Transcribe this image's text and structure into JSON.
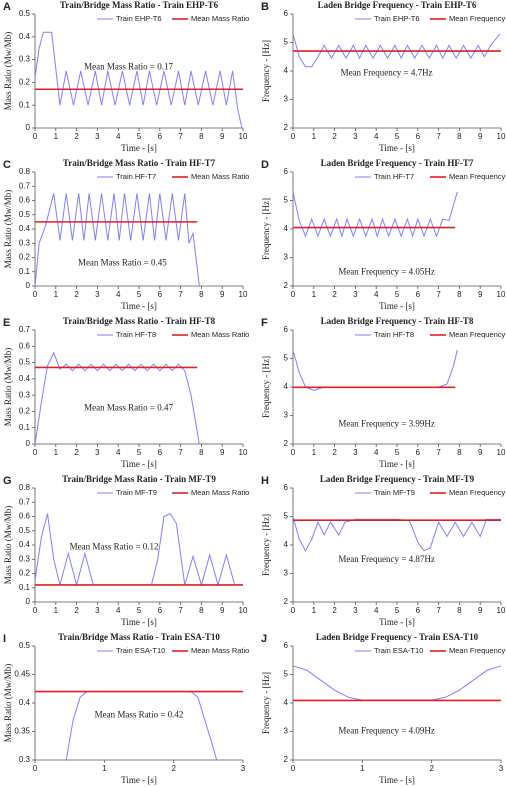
{
  "chart_data": [
    {
      "type": "line",
      "panel": "A",
      "title": "Train/Bridge Mass Ratio - Train EHP-T6",
      "xlabel": "Time - [s]",
      "ylabel": "Mass Ratio (Mw/Mb)",
      "annotation": "Mean Mass Ratio = 0.17",
      "xlim": [
        0,
        10
      ],
      "ylim": [
        0,
        0.5
      ],
      "xticks": [
        0,
        1,
        2,
        3,
        4,
        5,
        6,
        7,
        8,
        9,
        10
      ],
      "yticks": [
        0,
        0.1,
        0.2,
        0.3,
        0.4,
        0.5
      ],
      "series": [
        {
          "name": "Train EHP-T6",
          "color": "#8080ff",
          "x": [
            0,
            0.2,
            0.4,
            0.8,
            1.2,
            1.5,
            1.85,
            2.2,
            2.55,
            2.9,
            3.2,
            3.5,
            3.85,
            4.2,
            4.55,
            4.9,
            5.2,
            5.5,
            5.85,
            6.2,
            6.55,
            6.9,
            7.2,
            7.5,
            7.85,
            8.2,
            8.55,
            8.9,
            9.2,
            9.5,
            9.75,
            9.95
          ],
          "values": [
            0.22,
            0.35,
            0.42,
            0.42,
            0.1,
            0.25,
            0.1,
            0.25,
            0.1,
            0.25,
            0.1,
            0.25,
            0.1,
            0.25,
            0.1,
            0.25,
            0.1,
            0.25,
            0.1,
            0.25,
            0.1,
            0.25,
            0.1,
            0.25,
            0.1,
            0.25,
            0.1,
            0.25,
            0.1,
            0.25,
            0.08,
            0.0
          ]
        },
        {
          "name": "Mean Mass Ratio",
          "color": "#e02020",
          "x": [
            0,
            10
          ],
          "values": [
            0.17,
            0.17
          ]
        }
      ]
    },
    {
      "type": "line",
      "panel": "B",
      "title": "Laden Bridge Frequency - Train EHP-T6",
      "xlabel": "Time - [s]",
      "ylabel": "Frequency - [Hz]",
      "annotation": "Mean Frequency = 4.7Hz",
      "xlim": [
        0,
        10
      ],
      "ylim": [
        2,
        6
      ],
      "xticks": [
        0,
        1,
        2,
        3,
        4,
        5,
        6,
        7,
        8,
        9,
        10
      ],
      "yticks": [
        2,
        3,
        4,
        5,
        6
      ],
      "series": [
        {
          "name": "Train EHP-T6",
          "color": "#8080ff",
          "x": [
            0,
            0.3,
            0.6,
            0.9,
            1.2,
            1.5,
            1.85,
            2.2,
            2.55,
            2.9,
            3.2,
            3.5,
            3.85,
            4.2,
            4.55,
            4.9,
            5.2,
            5.5,
            5.85,
            6.2,
            6.55,
            6.9,
            7.2,
            7.5,
            7.85,
            8.2,
            8.55,
            8.9,
            9.2,
            9.5,
            9.95
          ],
          "values": [
            5.3,
            4.5,
            4.15,
            4.15,
            4.5,
            4.9,
            4.45,
            4.9,
            4.45,
            4.9,
            4.45,
            4.9,
            4.45,
            4.9,
            4.45,
            4.9,
            4.45,
            4.9,
            4.45,
            4.9,
            4.45,
            4.9,
            4.45,
            4.9,
            4.45,
            4.9,
            4.45,
            4.9,
            4.5,
            4.9,
            5.3
          ]
        },
        {
          "name": "Mean Frequency",
          "color": "#e02020",
          "x": [
            0,
            10
          ],
          "values": [
            4.7,
            4.7
          ]
        }
      ]
    },
    {
      "type": "line",
      "panel": "C",
      "title": "Train/Bridge Mass Ratio - Train HF-T7",
      "xlabel": "Time - [s]",
      "ylabel": "Mass Ratio (Mw/Mb)",
      "annotation": "Mean Mass Ratio = 0.45",
      "xlim": [
        0,
        10
      ],
      "ylim": [
        0,
        0.8
      ],
      "xticks": [
        0,
        1,
        2,
        3,
        4,
        5,
        6,
        7,
        8,
        9,
        10
      ],
      "yticks": [
        0,
        0.1,
        0.2,
        0.3,
        0.4,
        0.5,
        0.6,
        0.7,
        0.8
      ],
      "series": [
        {
          "name": "Train HF-T7",
          "color": "#8080ff",
          "x": [
            0,
            0.2,
            0.5,
            0.9,
            1.2,
            1.5,
            1.8,
            2.1,
            2.35,
            2.6,
            2.9,
            3.2,
            3.5,
            3.8,
            4.05,
            4.3,
            4.6,
            4.9,
            5.2,
            5.5,
            5.75,
            6.0,
            6.3,
            6.6,
            6.9,
            7.2,
            7.4,
            7.6,
            7.9
          ],
          "values": [
            0,
            0.3,
            0.42,
            0.65,
            0.32,
            0.65,
            0.32,
            0.65,
            0.32,
            0.65,
            0.32,
            0.65,
            0.32,
            0.65,
            0.32,
            0.65,
            0.32,
            0.65,
            0.32,
            0.65,
            0.32,
            0.65,
            0.32,
            0.65,
            0.32,
            0.65,
            0.3,
            0.37,
            0
          ]
        },
        {
          "name": "Mean Mass Ratio",
          "color": "#e02020",
          "x": [
            0,
            7.8
          ],
          "values": [
            0.45,
            0.45
          ]
        }
      ]
    },
    {
      "type": "line",
      "panel": "D",
      "title": "Laden Bridge Frequency - Train HF-T7",
      "xlabel": "Time - [s]",
      "ylabel": "Frequency - [Hz]",
      "annotation": "Mean Frequency = 4.05Hz",
      "xlim": [
        0,
        10
      ],
      "ylim": [
        2,
        6
      ],
      "xticks": [
        0,
        1,
        2,
        3,
        4,
        5,
        6,
        7,
        8,
        9,
        10
      ],
      "yticks": [
        2,
        3,
        4,
        5,
        6
      ],
      "series": [
        {
          "name": "Train HF-T7",
          "color": "#8080ff",
          "x": [
            0,
            0.3,
            0.6,
            0.9,
            1.2,
            1.5,
            1.8,
            2.1,
            2.35,
            2.6,
            2.9,
            3.2,
            3.5,
            3.8,
            4.05,
            4.3,
            4.6,
            4.9,
            5.2,
            5.5,
            5.75,
            6.0,
            6.3,
            6.6,
            6.9,
            7.2,
            7.5,
            7.9
          ],
          "values": [
            5.3,
            4.3,
            3.75,
            4.35,
            3.75,
            4.35,
            3.75,
            4.35,
            3.75,
            4.35,
            3.75,
            4.35,
            3.75,
            4.35,
            3.75,
            4.35,
            3.75,
            4.35,
            3.75,
            4.35,
            3.75,
            4.35,
            3.75,
            4.35,
            3.75,
            4.35,
            4.3,
            5.3
          ]
        },
        {
          "name": "Mean Frequency",
          "color": "#e02020",
          "x": [
            0,
            7.8
          ],
          "values": [
            4.05,
            4.05
          ]
        }
      ]
    },
    {
      "type": "line",
      "panel": "E",
      "title": "Train/Bridge Mass Ratio - Train HF-T8",
      "xlabel": "Time - [s]",
      "ylabel": "Mass Ratio (Mw/Mb)",
      "annotation": "Mean Mass Ratio = 0.47",
      "xlim": [
        0,
        10
      ],
      "ylim": [
        0,
        0.7
      ],
      "xticks": [
        0,
        1,
        2,
        3,
        4,
        5,
        6,
        7,
        8,
        9,
        10
      ],
      "yticks": [
        0,
        0.1,
        0.2,
        0.3,
        0.4,
        0.5,
        0.6,
        0.7
      ],
      "series": [
        {
          "name": "Train HF-T8",
          "color": "#8080ff",
          "x": [
            0,
            0.3,
            0.6,
            0.9,
            1.2,
            1.5,
            1.8,
            2.1,
            2.4,
            2.7,
            3.0,
            3.3,
            3.6,
            3.9,
            4.2,
            4.5,
            4.8,
            5.1,
            5.4,
            5.7,
            6.0,
            6.3,
            6.6,
            6.9,
            7.2,
            7.5,
            7.9
          ],
          "values": [
            0,
            0.25,
            0.48,
            0.56,
            0.46,
            0.49,
            0.45,
            0.49,
            0.45,
            0.49,
            0.45,
            0.49,
            0.45,
            0.49,
            0.45,
            0.49,
            0.45,
            0.49,
            0.45,
            0.49,
            0.45,
            0.49,
            0.45,
            0.49,
            0.45,
            0.3,
            0
          ]
        },
        {
          "name": "Mean Mass Ratio",
          "color": "#e02020",
          "x": [
            0,
            7.8
          ],
          "values": [
            0.47,
            0.47
          ]
        }
      ]
    },
    {
      "type": "line",
      "panel": "F",
      "title": "Laden Bridge Frequency - Train HF-T8",
      "xlabel": "Time - [s]",
      "ylabel": "Frequency - [Hz]",
      "annotation": "Mean Frequency = 3.99Hz",
      "xlim": [
        0,
        10
      ],
      "ylim": [
        2,
        6
      ],
      "xticks": [
        0,
        1,
        2,
        3,
        4,
        5,
        6,
        7,
        8,
        9,
        10
      ],
      "yticks": [
        2,
        3,
        4,
        5,
        6
      ],
      "series": [
        {
          "name": "Train HF-T8",
          "color": "#8080ff",
          "x": [
            0,
            0.3,
            0.6,
            1.0,
            1.5,
            2,
            3,
            4,
            5,
            6,
            7,
            7.4,
            7.7,
            7.9
          ],
          "values": [
            5.3,
            4.5,
            4.0,
            3.88,
            4.0,
            4.0,
            4.0,
            4.0,
            4.0,
            4.0,
            4.0,
            4.1,
            4.7,
            5.3
          ]
        },
        {
          "name": "Mean Frequency",
          "color": "#e02020",
          "x": [
            0,
            7.8
          ],
          "values": [
            3.99,
            3.99
          ]
        }
      ]
    },
    {
      "type": "line",
      "panel": "G",
      "title": "Train/Bridge Mass Ratio - Train MF-T9",
      "xlabel": "Time - [s]",
      "ylabel": "Mass Ratio (Mw/Mb)",
      "annotation": "Mean Mass Ratio = 0.12",
      "xlim": [
        0,
        10
      ],
      "ylim": [
        0,
        0.8
      ],
      "xticks": [
        0,
        1,
        2,
        3,
        4,
        5,
        6,
        7,
        8,
        9,
        10
      ],
      "yticks": [
        0,
        0.1,
        0.2,
        0.3,
        0.4,
        0.5,
        0.6,
        0.7,
        0.8
      ],
      "series": [
        {
          "name": "Train MF-T9",
          "color": "#8080ff",
          "x": [
            0,
            0.3,
            0.6,
            0.9,
            1.2,
            1.6,
            2.0,
            2.4,
            2.8,
            4,
            5.6,
            5.9,
            6.2,
            6.5,
            6.8,
            7.2,
            7.6,
            8.0,
            8.4,
            8.8,
            9.2,
            9.6,
            10
          ],
          "values": [
            0.15,
            0.45,
            0.62,
            0.3,
            0.12,
            0.34,
            0.12,
            0.34,
            0.12,
            0.12,
            0.12,
            0.3,
            0.6,
            0.62,
            0.55,
            0.12,
            0.32,
            0.12,
            0.33,
            0.12,
            0.33,
            0.12,
            0.12
          ]
        },
        {
          "name": "Mean Mass Ratio",
          "color": "#e02020",
          "x": [
            0,
            10
          ],
          "values": [
            0.12,
            0.12
          ]
        }
      ]
    },
    {
      "type": "line",
      "panel": "H",
      "title": "Laden Bridge Frequency - Train MF-T9",
      "xlabel": "Time - [s]",
      "ylabel": "Frequency - [Hz]",
      "annotation": "Mean Frequency = 4.87Hz",
      "xlim": [
        0,
        10
      ],
      "ylim": [
        2,
        6
      ],
      "xticks": [
        0,
        1,
        2,
        3,
        4,
        5,
        6,
        7,
        8,
        9,
        10
      ],
      "yticks": [
        2,
        3,
        4,
        5,
        6
      ],
      "series": [
        {
          "name": "Train MF-T9",
          "color": "#8080ff",
          "x": [
            0,
            0.3,
            0.6,
            0.9,
            1.2,
            1.5,
            1.8,
            2.2,
            2.5,
            3,
            4,
            5,
            5.6,
            6.0,
            6.3,
            6.6,
            7.0,
            7.4,
            7.8,
            8.2,
            8.6,
            9.0,
            9.3,
            10
          ],
          "values": [
            5.0,
            4.2,
            3.8,
            4.2,
            4.8,
            4.35,
            4.8,
            4.35,
            4.8,
            4.9,
            4.9,
            4.9,
            4.85,
            4.1,
            3.8,
            3.9,
            4.8,
            4.3,
            4.8,
            4.3,
            4.8,
            4.3,
            4.9,
            4.9
          ]
        },
        {
          "name": "Mean Frequency",
          "color": "#e02020",
          "x": [
            0,
            10
          ],
          "values": [
            4.87,
            4.87
          ]
        }
      ]
    },
    {
      "type": "line",
      "panel": "I",
      "title": "Train/Bridge Mass Ratio - Train ESA-T10",
      "xlabel": "Time - [s]",
      "ylabel": "Mass Ratio (Mw/Mb)",
      "annotation": "Mean Mass Ratio = 0.42",
      "xlim": [
        0,
        3
      ],
      "ylim": [
        0.3,
        0.5
      ],
      "xticks": [
        0,
        1,
        2,
        3
      ],
      "yticks": [
        0.3,
        0.35,
        0.4,
        0.45,
        0.5
      ],
      "series": [
        {
          "name": "Train ESA-T10",
          "color": "#8080ff",
          "x": [
            0.45,
            0.55,
            0.65,
            0.75,
            1.0,
            1.5,
            2.0,
            2.25,
            2.35,
            2.45,
            2.55,
            2.62
          ],
          "values": [
            0.3,
            0.37,
            0.41,
            0.42,
            0.42,
            0.42,
            0.42,
            0.42,
            0.41,
            0.37,
            0.33,
            0.3
          ]
        },
        {
          "name": "Mean Mass Ratio",
          "color": "#e02020",
          "x": [
            0,
            3
          ],
          "values": [
            0.42,
            0.42
          ]
        }
      ]
    },
    {
      "type": "line",
      "panel": "J",
      "title": "Laden Bridge Frequency - Train ESA-T10",
      "xlabel": "Time - [s]",
      "ylabel": "Frequency - [Hz]",
      "annotation": "Mean Frequency = 4.09Hz",
      "xlim": [
        0,
        3
      ],
      "ylim": [
        2,
        6
      ],
      "xticks": [
        0,
        1,
        2,
        3
      ],
      "yticks": [
        2,
        3,
        4,
        5,
        6
      ],
      "series": [
        {
          "name": "Train ESA-T10",
          "color": "#8080ff",
          "x": [
            0,
            0.2,
            0.4,
            0.6,
            0.8,
            1.0,
            1.5,
            2.0,
            2.2,
            2.4,
            2.6,
            2.8,
            3.0
          ],
          "values": [
            5.3,
            5.15,
            4.8,
            4.45,
            4.2,
            4.1,
            4.1,
            4.1,
            4.2,
            4.45,
            4.8,
            5.15,
            5.3
          ]
        },
        {
          "name": "Mean Frequency",
          "color": "#e02020",
          "x": [
            0,
            3
          ],
          "values": [
            4.09,
            4.09
          ]
        }
      ]
    }
  ]
}
